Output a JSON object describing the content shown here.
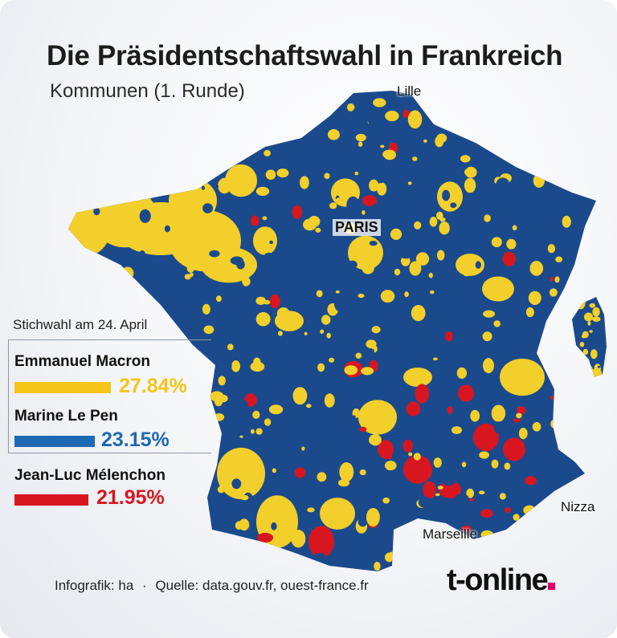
{
  "title": "Die Präsidentschaftswahl in Frankreich",
  "subtitle": "Kommunen (1. Runde)",
  "map": {
    "cities": {
      "lille": "Lille",
      "paris": "PARIS",
      "nizza": "Nizza",
      "marseille": "Marseille"
    },
    "colors": {
      "macron": "#f2cf2a",
      "lepen": "#1b4a8c",
      "melenchon": "#d8161f"
    }
  },
  "legend": {
    "runoff_note": "Stichwahl am 24. April",
    "candidates": [
      {
        "name": "Emmanuel Macron",
        "percent": "27.84%",
        "color": "#f5c518"
      },
      {
        "name": "Marine Le Pen",
        "percent": "23.15%",
        "color": "#1f69b3"
      },
      {
        "name": "Jean-Luc Mélenchon",
        "percent": "21.95%",
        "color": "#d8161f"
      }
    ]
  },
  "footer": {
    "credit": "Infografik: ha",
    "separator": "·",
    "source": "Quelle: data.gouv.fr, ouest-france.fr"
  },
  "brand": {
    "logo_text": "t-online"
  }
}
